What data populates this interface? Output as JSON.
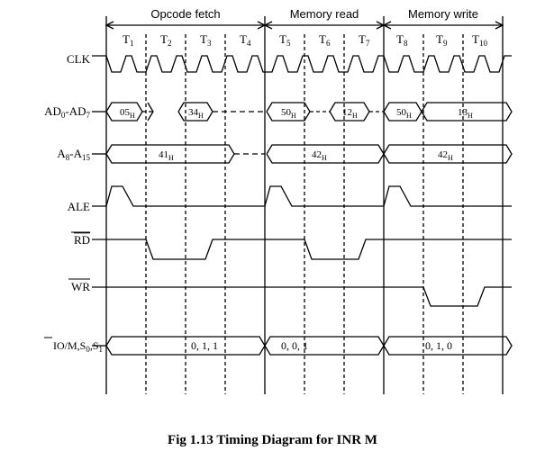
{
  "cycles": [
    {
      "label": "Opcode fetch"
    },
    {
      "label": "Memory read"
    },
    {
      "label": "Memory write"
    }
  ],
  "t_states": [
    {
      "base": "T",
      "sub": "1"
    },
    {
      "base": "T",
      "sub": "2"
    },
    {
      "base": "T",
      "sub": "3"
    },
    {
      "base": "T",
      "sub": "4"
    },
    {
      "base": "T",
      "sub": "5"
    },
    {
      "base": "T",
      "sub": "6"
    },
    {
      "base": "T",
      "sub": "7"
    },
    {
      "base": "T",
      "sub": "8"
    },
    {
      "base": "T",
      "sub": "9"
    },
    {
      "base": "T",
      "sub": "10"
    }
  ],
  "signals": {
    "clk": {
      "label": "CLK"
    },
    "ad": {
      "label_parts": [
        "AD",
        "0",
        "-AD",
        "7"
      ]
    },
    "a": {
      "label_parts": [
        "A",
        "8",
        "-A",
        "15"
      ]
    },
    "ale": {
      "label": "ALE"
    },
    "rd": {
      "label": "RD"
    },
    "wr": {
      "label": "WR"
    },
    "io": {
      "label_parts": [
        "IO/",
        "M",
        ",S",
        "0",
        ",S",
        "1"
      ]
    }
  },
  "values": {
    "ad": [
      {
        "main": "05",
        "sub": "H"
      },
      {
        "main": "34",
        "sub": "H"
      },
      {
        "main": "50",
        "sub": "H"
      },
      {
        "main": "12",
        "sub": "H"
      },
      {
        "main": "50",
        "sub": "H"
      },
      {
        "main": "13",
        "sub": "H"
      }
    ],
    "a": [
      {
        "main": "41",
        "sub": "H"
      },
      {
        "main": "42",
        "sub": "H"
      },
      {
        "main": "42",
        "sub": "H"
      }
    ],
    "io": [
      "0, 1, 1",
      "0, 0, 1",
      "0, 1, 0"
    ]
  },
  "caption": "Fig 1.13 Timing Diagram for INR M"
}
